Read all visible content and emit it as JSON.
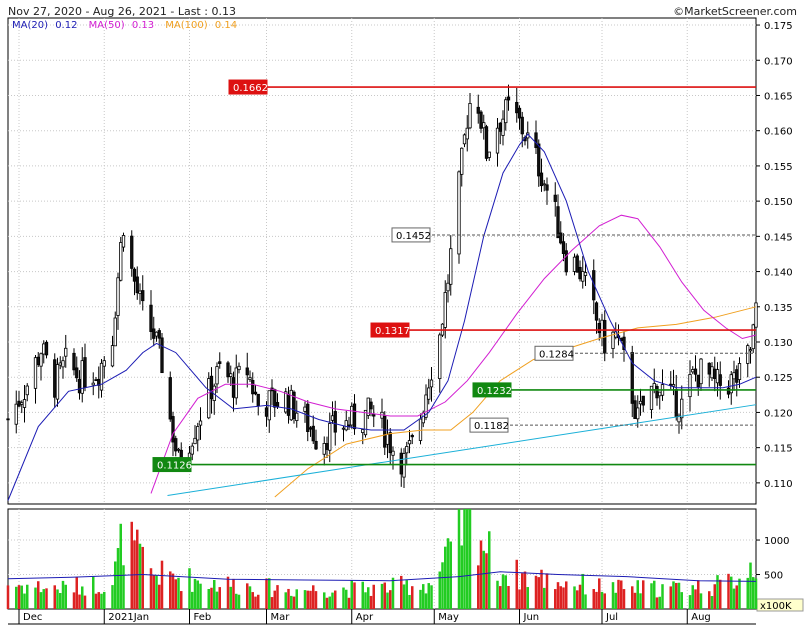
{
  "header": {
    "title": "Nov 27, 2020 - Aug 26, 2021 - Last : 0.13",
    "source": "©MarketScreener.com"
  },
  "legend": [
    {
      "label": "MA(20)",
      "value": "0.12",
      "color": "#1c1cb4"
    },
    {
      "label": "MA(50)",
      "value": "0.13",
      "color": "#d21ed2"
    },
    {
      "label": "MA(100)",
      "value": "0.14",
      "color": "#f0a020"
    }
  ],
  "colors": {
    "up": "#22cc22",
    "down": "#dd2222",
    "candle_up": "#ffffff",
    "candle_down": "#111111",
    "grid": "#c8c8c8",
    "trend": "#1ab0d8"
  },
  "chart_data": [
    {
      "type": "candlestick",
      "title": "",
      "ylim": [
        0.107,
        0.176
      ],
      "y_ticks": [
        "0.110",
        "0.115",
        "0.120",
        "0.125",
        "0.130",
        "0.135",
        "0.140",
        "0.145",
        "0.150",
        "0.155",
        "0.160",
        "0.165",
        "0.170",
        "0.175"
      ],
      "x_ticks": [
        "Dec",
        "2021Jan",
        "Feb",
        "Mar",
        "Apr",
        "May",
        "Jun",
        "Jul",
        "Aug"
      ],
      "x_tick_dates": [
        "2020-12-01",
        "2021-01-01",
        "2021-02-01",
        "2021-03-01",
        "2021-04-01",
        "2021-05-01",
        "2021-06-01",
        "2021-07-01",
        "2021-08-01"
      ],
      "x_range": [
        "2020-11-27",
        "2021-08-26"
      ],
      "grid": true,
      "levels": [
        {
          "label": "0.1662",
          "value": 0.1662,
          "style": "solid",
          "color": "#dd1111",
          "label_bg": "#dd1111",
          "label_color": "#ffffff"
        },
        {
          "label": "0.1452",
          "value": 0.1452,
          "style": "dashed",
          "color": "#555555",
          "label_bg": "#ffffff",
          "label_color": "#000000"
        },
        {
          "label": "0.1317",
          "value": 0.1317,
          "style": "solid",
          "color": "#dd1111",
          "label_bg": "#dd1111",
          "label_color": "#ffffff"
        },
        {
          "label": "0.1284",
          "value": 0.1284,
          "style": "dashed",
          "color": "#555555",
          "label_bg": "#ffffff",
          "label_color": "#000000"
        },
        {
          "label": "0.1232",
          "value": 0.1232,
          "style": "solid",
          "color": "#118811",
          "label_bg": "#118811",
          "label_color": "#ffffff"
        },
        {
          "label": "0.1182",
          "value": 0.1182,
          "style": "dashed",
          "color": "#555555",
          "label_bg": "#ffffff",
          "label_color": "#000000"
        },
        {
          "label": "0.1126",
          "value": 0.1126,
          "style": "solid",
          "color": "#118811",
          "label_bg": "#118811",
          "label_color": "#ffffff"
        }
      ],
      "trendline": {
        "x": [
          "2021-01-24",
          "2021-08-26"
        ],
        "y": [
          0.1082,
          0.1211
        ]
      },
      "price_path": [
        [
          "2020-11-27",
          0.119
        ],
        [
          "2020-12-04",
          0.124
        ],
        [
          "2020-12-09",
          0.129
        ],
        [
          "2020-12-14",
          0.124
        ],
        [
          "2020-12-18",
          0.127
        ],
        [
          "2020-12-23",
          0.125
        ],
        [
          "2020-12-30",
          0.126
        ],
        [
          "2021-01-04",
          0.131
        ],
        [
          "2021-01-07",
          0.1435
        ],
        [
          "2021-01-08",
          0.147
        ],
        [
          "2021-01-11",
          0.14
        ],
        [
          "2021-01-15",
          0.134
        ],
        [
          "2021-01-19",
          0.131
        ],
        [
          "2021-01-22",
          0.127
        ],
        [
          "2021-01-25",
          0.119
        ],
        [
          "2021-01-28",
          0.113
        ],
        [
          "2021-02-02",
          0.117
        ],
        [
          "2021-02-07",
          0.122
        ],
        [
          "2021-02-12",
          0.126
        ],
        [
          "2021-02-17",
          0.124
        ],
        [
          "2021-02-22",
          0.126
        ],
        [
          "2021-02-26",
          0.121
        ],
        [
          "2021-03-03",
          0.1215
        ],
        [
          "2021-03-08",
          0.122
        ],
        [
          "2021-03-15",
          0.119
        ],
        [
          "2021-03-20",
          0.116
        ],
        [
          "2021-03-27",
          0.118
        ],
        [
          "2021-04-03",
          0.119
        ],
        [
          "2021-04-08",
          0.12
        ],
        [
          "2021-04-12",
          0.118
        ],
        [
          "2021-04-16",
          0.115
        ],
        [
          "2021-04-20",
          0.113
        ],
        [
          "2021-04-24",
          0.116
        ],
        [
          "2021-04-29",
          0.125
        ],
        [
          "2021-05-03",
          0.131
        ],
        [
          "2021-05-06",
          0.139
        ],
        [
          "2021-05-10",
          0.152
        ],
        [
          "2021-05-13",
          0.162
        ],
        [
          "2021-05-15",
          0.166
        ],
        [
          "2021-05-17",
          0.164
        ],
        [
          "2021-05-20",
          0.157
        ],
        [
          "2021-05-24",
          0.161
        ],
        [
          "2021-05-28",
          0.163
        ],
        [
          "2021-06-01",
          0.161
        ],
        [
          "2021-06-05",
          0.158
        ],
        [
          "2021-06-09",
          0.154
        ],
        [
          "2021-06-14",
          0.148
        ],
        [
          "2021-06-18",
          0.142
        ],
        [
          "2021-06-22",
          0.141
        ],
        [
          "2021-06-25",
          0.138
        ],
        [
          "2021-06-29",
          0.133
        ],
        [
          "2021-07-02",
          0.13
        ],
        [
          "2021-07-06",
          0.131
        ],
        [
          "2021-07-10",
          0.126
        ],
        [
          "2021-07-14",
          0.119
        ],
        [
          "2021-07-17",
          0.122
        ],
        [
          "2021-07-21",
          0.124
        ],
        [
          "2021-07-26",
          0.122
        ],
        [
          "2021-07-30",
          0.121
        ],
        [
          "2021-08-03",
          0.125
        ],
        [
          "2021-08-07",
          0.126
        ],
        [
          "2021-08-11",
          0.124
        ],
        [
          "2021-08-15",
          0.124
        ],
        [
          "2021-08-20",
          0.125
        ],
        [
          "2021-08-24",
          0.129
        ],
        [
          "2021-08-26",
          0.134
        ]
      ],
      "ma20": [
        [
          "2020-11-27",
          0.1075
        ],
        [
          "2020-12-08",
          0.118
        ],
        [
          "2020-12-19",
          0.123
        ],
        [
          "2020-12-31",
          0.124
        ],
        [
          "2021-01-09",
          0.126
        ],
        [
          "2021-01-15",
          0.1285
        ],
        [
          "2021-01-20",
          0.1298
        ],
        [
          "2021-01-27",
          0.1285
        ],
        [
          "2021-02-07",
          0.1235
        ],
        [
          "2021-02-17",
          0.1205
        ],
        [
          "2021-03-01",
          0.121
        ],
        [
          "2021-03-10",
          0.1205
        ],
        [
          "2021-03-20",
          0.119
        ],
        [
          "2021-03-30",
          0.118
        ],
        [
          "2021-04-08",
          0.1175
        ],
        [
          "2021-04-20",
          0.1175
        ],
        [
          "2021-04-29",
          0.12
        ],
        [
          "2021-05-06",
          0.1245
        ],
        [
          "2021-05-12",
          0.133
        ],
        [
          "2021-05-19",
          0.145
        ],
        [
          "2021-05-26",
          0.154
        ],
        [
          "2021-06-01",
          0.158
        ],
        [
          "2021-06-04",
          0.1595
        ],
        [
          "2021-06-10",
          0.157
        ],
        [
          "2021-06-18",
          0.15
        ],
        [
          "2021-06-26",
          0.14
        ],
        [
          "2021-07-04",
          0.133
        ],
        [
          "2021-07-12",
          0.127
        ],
        [
          "2021-07-20",
          0.1245
        ],
        [
          "2021-07-28",
          0.1235
        ],
        [
          "2021-08-06",
          0.1235
        ],
        [
          "2021-08-14",
          0.1235
        ],
        [
          "2021-08-20",
          0.124
        ],
        [
          "2021-08-26",
          0.125
        ]
      ],
      "ma50": [
        [
          "2021-01-18",
          0.1085
        ],
        [
          "2021-01-26",
          0.117
        ],
        [
          "2021-02-04",
          0.122
        ],
        [
          "2021-02-14",
          0.124
        ],
        [
          "2021-02-24",
          0.124
        ],
        [
          "2021-03-06",
          0.123
        ],
        [
          "2021-03-16",
          0.1215
        ],
        [
          "2021-03-26",
          0.1205
        ],
        [
          "2021-04-05",
          0.12
        ],
        [
          "2021-04-15",
          0.1195
        ],
        [
          "2021-04-25",
          0.1195
        ],
        [
          "2021-05-05",
          0.1215
        ],
        [
          "2021-05-13",
          0.1245
        ],
        [
          "2021-05-21",
          0.1285
        ],
        [
          "2021-05-31",
          0.134
        ],
        [
          "2021-06-10",
          0.139
        ],
        [
          "2021-06-20",
          0.143
        ],
        [
          "2021-06-30",
          0.1465
        ],
        [
          "2021-07-08",
          0.148
        ],
        [
          "2021-07-14",
          0.1475
        ],
        [
          "2021-07-22",
          0.1435
        ],
        [
          "2021-07-30",
          0.1385
        ],
        [
          "2021-08-07",
          0.1345
        ],
        [
          "2021-08-15",
          0.132
        ],
        [
          "2021-08-21",
          0.1305
        ],
        [
          "2021-08-26",
          0.131
        ]
      ],
      "ma100": [
        [
          "2021-03-04",
          0.108
        ],
        [
          "2021-03-16",
          0.112
        ],
        [
          "2021-03-30",
          0.1155
        ],
        [
          "2021-04-15",
          0.117
        ],
        [
          "2021-04-27",
          0.1175
        ],
        [
          "2021-05-07",
          0.1175
        ],
        [
          "2021-05-15",
          0.12
        ],
        [
          "2021-05-25",
          0.1245
        ],
        [
          "2021-06-06",
          0.1275
        ],
        [
          "2021-06-18",
          0.129
        ],
        [
          "2021-06-30",
          0.1305
        ],
        [
          "2021-07-14",
          0.132
        ],
        [
          "2021-07-28",
          0.1325
        ],
        [
          "2021-08-11",
          0.1335
        ],
        [
          "2021-08-26",
          0.135
        ]
      ]
    },
    {
      "type": "bar",
      "title": "",
      "unit_label": "x100K",
      "ylim": [
        0,
        1450
      ],
      "y_ticks": [
        "500",
        "1000"
      ],
      "volume_path": [
        [
          "2020-11-27",
          360
        ],
        [
          "2020-12-15",
          300
        ],
        [
          "2021-01-04",
          380
        ],
        [
          "2021-01-08",
          1100
        ],
        [
          "2021-01-18",
          520
        ],
        [
          "2021-02-10",
          380
        ],
        [
          "2021-03-10",
          280
        ],
        [
          "2021-04-10",
          300
        ],
        [
          "2021-05-01",
          380
        ],
        [
          "2021-05-08",
          900
        ],
        [
          "2021-05-14",
          1400
        ],
        [
          "2021-05-24",
          550
        ],
        [
          "2021-06-15",
          400
        ],
        [
          "2021-07-05",
          300
        ],
        [
          "2021-07-25",
          300
        ],
        [
          "2021-08-15",
          350
        ],
        [
          "2021-08-25",
          650
        ]
      ],
      "avg_path": [
        [
          "2020-11-27",
          440
        ],
        [
          "2020-12-20",
          460
        ],
        [
          "2021-01-15",
          500
        ],
        [
          "2021-02-15",
          430
        ],
        [
          "2021-03-15",
          420
        ],
        [
          "2021-04-15",
          410
        ],
        [
          "2021-05-10",
          470
        ],
        [
          "2021-05-25",
          540
        ],
        [
          "2021-06-15",
          500
        ],
        [
          "2021-07-10",
          470
        ],
        [
          "2021-08-05",
          410
        ],
        [
          "2021-08-26",
          400
        ]
      ]
    }
  ]
}
